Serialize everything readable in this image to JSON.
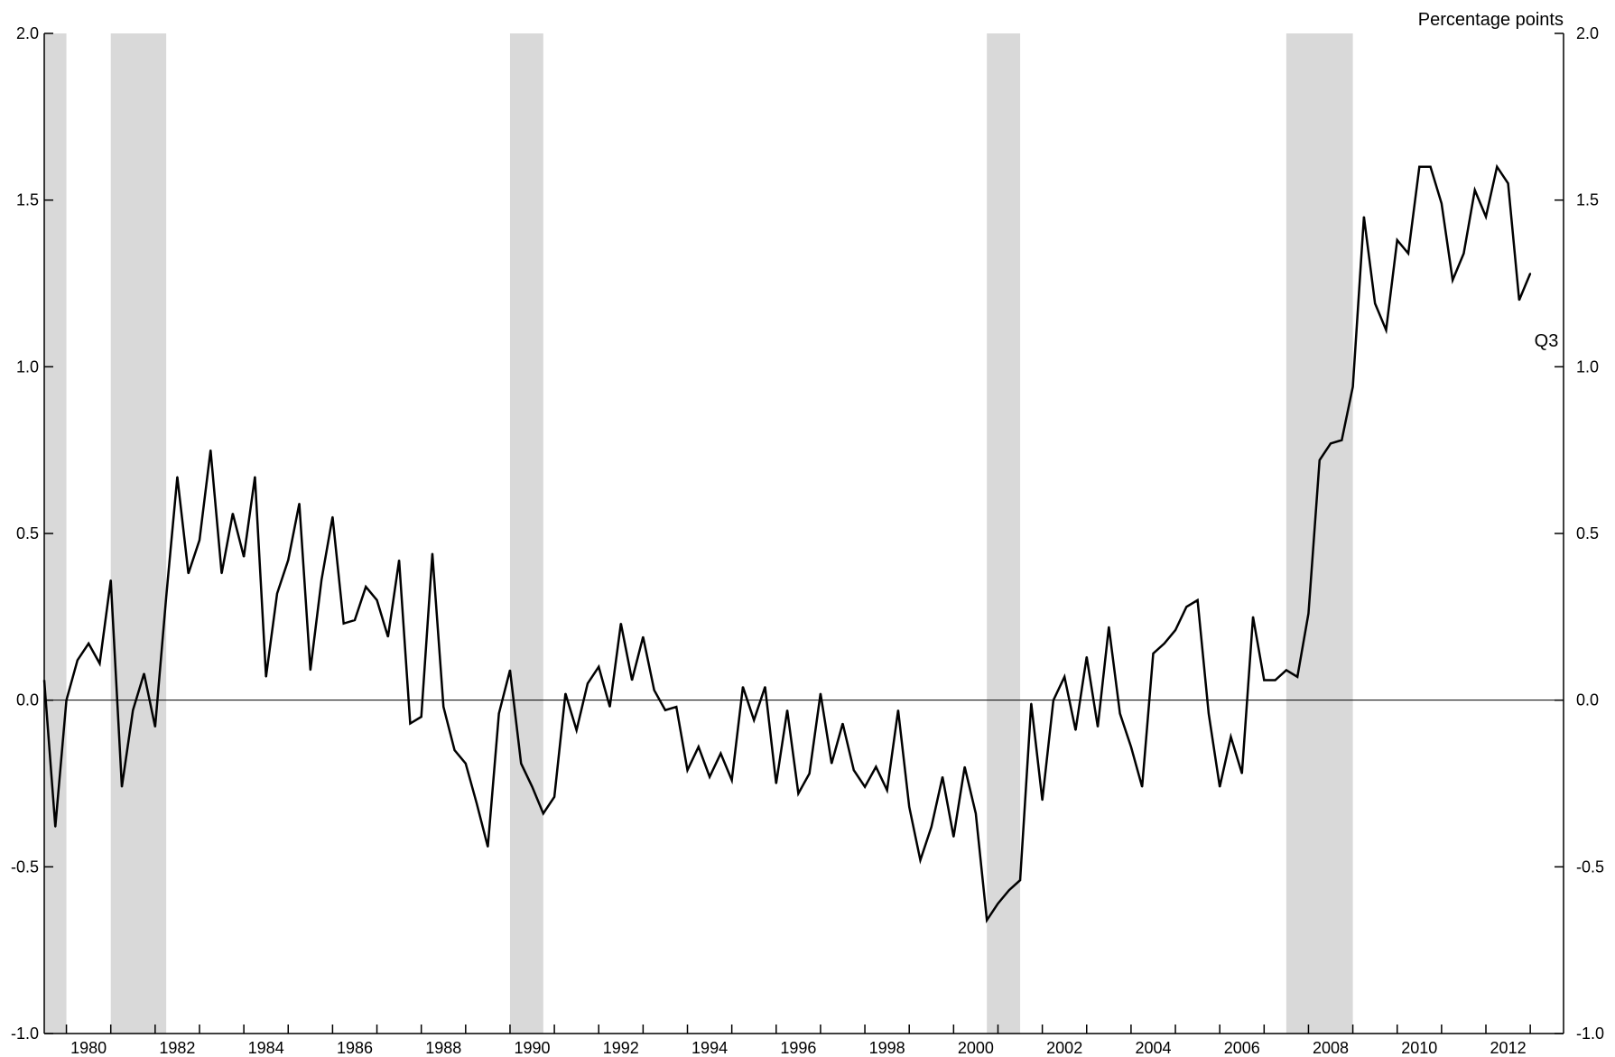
{
  "chart_data": {
    "type": "line",
    "title": "",
    "xlabel": "",
    "ylabel": "Percentage points",
    "xlim": [
      1979.5,
      2013.75
    ],
    "ylim": [
      -1.0,
      2.0
    ],
    "y_ticks": [
      "-1.0",
      "-0.5",
      "0.0",
      "0.5",
      "1.0",
      "1.5",
      "2.0"
    ],
    "x_ticks": [
      "1980",
      "1982",
      "1984",
      "1986",
      "1988",
      "1990",
      "1992",
      "1994",
      "1996",
      "1998",
      "2000",
      "2002",
      "2004",
      "2006",
      "2008",
      "2010",
      "2012"
    ],
    "grid": false,
    "zero_line": true,
    "recession_color": "#d9d9d9",
    "line_color": "#000000",
    "recessions": [
      [
        1979.5,
        1980.0
      ],
      [
        1981.0,
        1982.25
      ],
      [
        1990.0,
        1990.75
      ],
      [
        2000.75,
        2001.5
      ],
      [
        2007.5,
        2009.0
      ]
    ],
    "annotation": "Q3",
    "series": [
      {
        "values": [
          {
            "x": 1979.5,
            "y": 0.06
          },
          {
            "x": 1979.75,
            "y": -0.38
          },
          {
            "x": 1980.0,
            "y": 0.0
          },
          {
            "x": 1980.25,
            "y": 0.12
          },
          {
            "x": 1980.5,
            "y": 0.17
          },
          {
            "x": 1980.75,
            "y": 0.11
          },
          {
            "x": 1981.0,
            "y": 0.36
          },
          {
            "x": 1981.25,
            "y": -0.26
          },
          {
            "x": 1981.5,
            "y": -0.03
          },
          {
            "x": 1981.75,
            "y": 0.08
          },
          {
            "x": 1982.0,
            "y": -0.08
          },
          {
            "x": 1982.25,
            "y": 0.31
          },
          {
            "x": 1982.5,
            "y": 0.67
          },
          {
            "x": 1982.75,
            "y": 0.38
          },
          {
            "x": 1983.0,
            "y": 0.48
          },
          {
            "x": 1983.25,
            "y": 0.75
          },
          {
            "x": 1983.5,
            "y": 0.38
          },
          {
            "x": 1983.75,
            "y": 0.56
          },
          {
            "x": 1984.0,
            "y": 0.43
          },
          {
            "x": 1984.25,
            "y": 0.67
          },
          {
            "x": 1984.5,
            "y": 0.07
          },
          {
            "x": 1984.75,
            "y": 0.32
          },
          {
            "x": 1985.0,
            "y": 0.42
          },
          {
            "x": 1985.25,
            "y": 0.59
          },
          {
            "x": 1985.5,
            "y": 0.09
          },
          {
            "x": 1985.75,
            "y": 0.36
          },
          {
            "x": 1986.0,
            "y": 0.55
          },
          {
            "x": 1986.25,
            "y": 0.23
          },
          {
            "x": 1986.5,
            "y": 0.24
          },
          {
            "x": 1986.75,
            "y": 0.34
          },
          {
            "x": 1987.0,
            "y": 0.3
          },
          {
            "x": 1987.25,
            "y": 0.19
          },
          {
            "x": 1987.5,
            "y": 0.42
          },
          {
            "x": 1987.75,
            "y": -0.07
          },
          {
            "x": 1988.0,
            "y": -0.05
          },
          {
            "x": 1988.25,
            "y": 0.44
          },
          {
            "x": 1988.5,
            "y": -0.02
          },
          {
            "x": 1988.75,
            "y": -0.15
          },
          {
            "x": 1989.0,
            "y": -0.19
          },
          {
            "x": 1989.25,
            "y": -0.31
          },
          {
            "x": 1989.5,
            "y": -0.44
          },
          {
            "x": 1989.75,
            "y": -0.04
          },
          {
            "x": 1990.0,
            "y": 0.09
          },
          {
            "x": 1990.25,
            "y": -0.19
          },
          {
            "x": 1990.5,
            "y": -0.26
          },
          {
            "x": 1990.75,
            "y": -0.34
          },
          {
            "x": 1991.0,
            "y": -0.29
          },
          {
            "x": 1991.25,
            "y": 0.02
          },
          {
            "x": 1991.5,
            "y": -0.09
          },
          {
            "x": 1991.75,
            "y": 0.05
          },
          {
            "x": 1992.0,
            "y": 0.1
          },
          {
            "x": 1992.25,
            "y": -0.02
          },
          {
            "x": 1992.5,
            "y": 0.23
          },
          {
            "x": 1992.75,
            "y": 0.06
          },
          {
            "x": 1993.0,
            "y": 0.19
          },
          {
            "x": 1993.25,
            "y": 0.03
          },
          {
            "x": 1993.5,
            "y": -0.03
          },
          {
            "x": 1993.75,
            "y": -0.02
          },
          {
            "x": 1994.0,
            "y": -0.21
          },
          {
            "x": 1994.25,
            "y": -0.14
          },
          {
            "x": 1994.5,
            "y": -0.23
          },
          {
            "x": 1994.75,
            "y": -0.16
          },
          {
            "x": 1995.0,
            "y": -0.24
          },
          {
            "x": 1995.25,
            "y": 0.04
          },
          {
            "x": 1995.5,
            "y": -0.06
          },
          {
            "x": 1995.75,
            "y": 0.04
          },
          {
            "x": 1996.0,
            "y": -0.25
          },
          {
            "x": 1996.25,
            "y": -0.03
          },
          {
            "x": 1996.5,
            "y": -0.28
          },
          {
            "x": 1996.75,
            "y": -0.22
          },
          {
            "x": 1997.0,
            "y": 0.02
          },
          {
            "x": 1997.25,
            "y": -0.19
          },
          {
            "x": 1997.5,
            "y": -0.07
          },
          {
            "x": 1997.75,
            "y": -0.21
          },
          {
            "x": 1998.0,
            "y": -0.26
          },
          {
            "x": 1998.25,
            "y": -0.2
          },
          {
            "x": 1998.5,
            "y": -0.27
          },
          {
            "x": 1998.75,
            "y": -0.03
          },
          {
            "x": 1999.0,
            "y": -0.32
          },
          {
            "x": 1999.25,
            "y": -0.48
          },
          {
            "x": 1999.5,
            "y": -0.38
          },
          {
            "x": 1999.75,
            "y": -0.23
          },
          {
            "x": 2000.0,
            "y": -0.41
          },
          {
            "x": 2000.25,
            "y": -0.2
          },
          {
            "x": 2000.5,
            "y": -0.34
          },
          {
            "x": 2000.75,
            "y": -0.66
          },
          {
            "x": 2001.0,
            "y": -0.61
          },
          {
            "x": 2001.25,
            "y": -0.57
          },
          {
            "x": 2001.5,
            "y": -0.54
          },
          {
            "x": 2001.75,
            "y": -0.01
          },
          {
            "x": 2002.0,
            "y": -0.3
          },
          {
            "x": 2002.25,
            "y": 0.0
          },
          {
            "x": 2002.5,
            "y": 0.07
          },
          {
            "x": 2002.75,
            "y": -0.09
          },
          {
            "x": 2003.0,
            "y": 0.13
          },
          {
            "x": 2003.25,
            "y": -0.08
          },
          {
            "x": 2003.5,
            "y": 0.22
          },
          {
            "x": 2003.75,
            "y": -0.04
          },
          {
            "x": 2004.0,
            "y": -0.14
          },
          {
            "x": 2004.25,
            "y": -0.26
          },
          {
            "x": 2004.5,
            "y": 0.14
          },
          {
            "x": 2004.75,
            "y": 0.17
          },
          {
            "x": 2005.0,
            "y": 0.21
          },
          {
            "x": 2005.25,
            "y": 0.28
          },
          {
            "x": 2005.5,
            "y": 0.3
          },
          {
            "x": 2005.75,
            "y": -0.04
          },
          {
            "x": 2006.0,
            "y": -0.26
          },
          {
            "x": 2006.25,
            "y": -0.11
          },
          {
            "x": 2006.5,
            "y": -0.22
          },
          {
            "x": 2006.75,
            "y": 0.25
          },
          {
            "x": 2007.0,
            "y": 0.06
          },
          {
            "x": 2007.25,
            "y": 0.06
          },
          {
            "x": 2007.5,
            "y": 0.09
          },
          {
            "x": 2007.75,
            "y": 0.07
          },
          {
            "x": 2008.0,
            "y": 0.26
          },
          {
            "x": 2008.25,
            "y": 0.72
          },
          {
            "x": 2008.5,
            "y": 0.77
          },
          {
            "x": 2008.75,
            "y": 0.78
          },
          {
            "x": 2009.0,
            "y": 0.94
          },
          {
            "x": 2009.25,
            "y": 1.45
          },
          {
            "x": 2009.5,
            "y": 1.19
          },
          {
            "x": 2009.75,
            "y": 1.11
          },
          {
            "x": 2010.0,
            "y": 1.38
          },
          {
            "x": 2010.25,
            "y": 1.34
          },
          {
            "x": 2010.5,
            "y": 1.6
          },
          {
            "x": 2010.75,
            "y": 1.6
          },
          {
            "x": 2011.0,
            "y": 1.49
          },
          {
            "x": 2011.25,
            "y": 1.26
          },
          {
            "x": 2011.5,
            "y": 1.34
          },
          {
            "x": 2011.75,
            "y": 1.53
          },
          {
            "x": 2012.0,
            "y": 1.45
          },
          {
            "x": 2012.25,
            "y": 1.6
          },
          {
            "x": 2012.5,
            "y": 1.55
          },
          {
            "x": 2012.75,
            "y": 1.2
          },
          {
            "x": 2013.0,
            "y": 1.28
          }
        ]
      }
    ]
  }
}
